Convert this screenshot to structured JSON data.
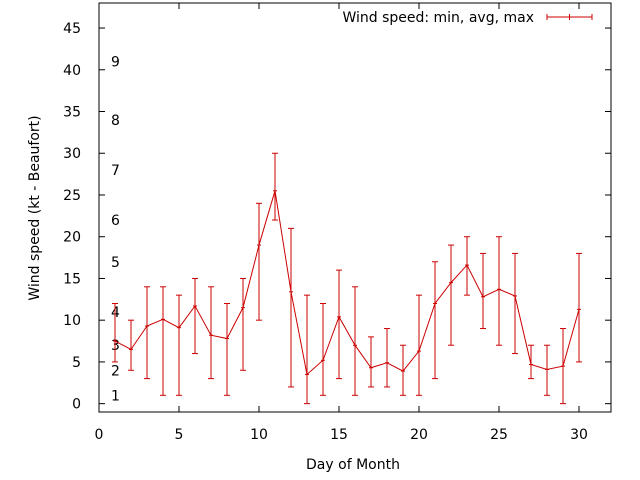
{
  "chart_data": {
    "type": "line",
    "xlabel": "Day of Month",
    "ylabel": "Wind speed (kt - Beaufort)",
    "xlim": [
      0,
      32
    ],
    "ylim": [
      -1,
      48
    ],
    "xticks": [
      0,
      5,
      10,
      15,
      20,
      25,
      30
    ],
    "yticks": [
      0,
      5,
      10,
      15,
      20,
      25,
      30,
      35,
      40,
      45
    ],
    "grid": false,
    "legend_position": "top-right",
    "series": [
      {
        "name": "Wind speed: min, avg, max",
        "color": "#cc0000",
        "x": [
          1,
          2,
          3,
          4,
          5,
          6,
          7,
          8,
          9,
          10,
          11,
          12,
          13,
          14,
          15,
          16,
          17,
          18,
          19,
          20,
          21,
          22,
          23,
          24,
          25,
          26,
          27,
          28,
          29,
          30
        ],
        "avg": [
          7.5,
          6.5,
          9.3,
          10.1,
          9.1,
          11.7,
          8.2,
          7.8,
          11.5,
          19,
          25.5,
          13.4,
          3.5,
          5.2,
          10.4,
          7,
          4.3,
          4.9,
          3.9,
          6.3,
          12,
          14.5,
          16.6,
          12.8,
          13.7,
          12.9,
          4.7,
          4.1,
          4.5,
          11.3
        ],
        "min": [
          5,
          4,
          3,
          1,
          1,
          6,
          3,
          1,
          4,
          10,
          22,
          2,
          0,
          1,
          3,
          1,
          2,
          2,
          1,
          1,
          3,
          7,
          13,
          9,
          7,
          6,
          3,
          1,
          0,
          5
        ],
        "max": [
          12,
          10,
          14,
          14,
          13,
          15,
          14,
          12,
          15,
          24,
          30,
          21,
          13,
          12,
          16,
          14,
          8,
          9,
          7,
          13,
          17,
          19,
          20,
          18,
          20,
          18,
          7,
          7,
          9,
          18
        ]
      }
    ],
    "annotations": [
      {
        "text": "1",
        "x": 1,
        "y": 1
      },
      {
        "text": "2",
        "x": 1,
        "y": 4
      },
      {
        "text": "3",
        "x": 1,
        "y": 7
      },
      {
        "text": "4",
        "x": 1,
        "y": 11
      },
      {
        "text": "5",
        "x": 1,
        "y": 17
      },
      {
        "text": "6",
        "x": 1,
        "y": 22
      },
      {
        "text": "7",
        "x": 1,
        "y": 28
      },
      {
        "text": "8",
        "x": 1,
        "y": 34
      },
      {
        "text": "9",
        "x": 1,
        "y": 41
      }
    ]
  }
}
